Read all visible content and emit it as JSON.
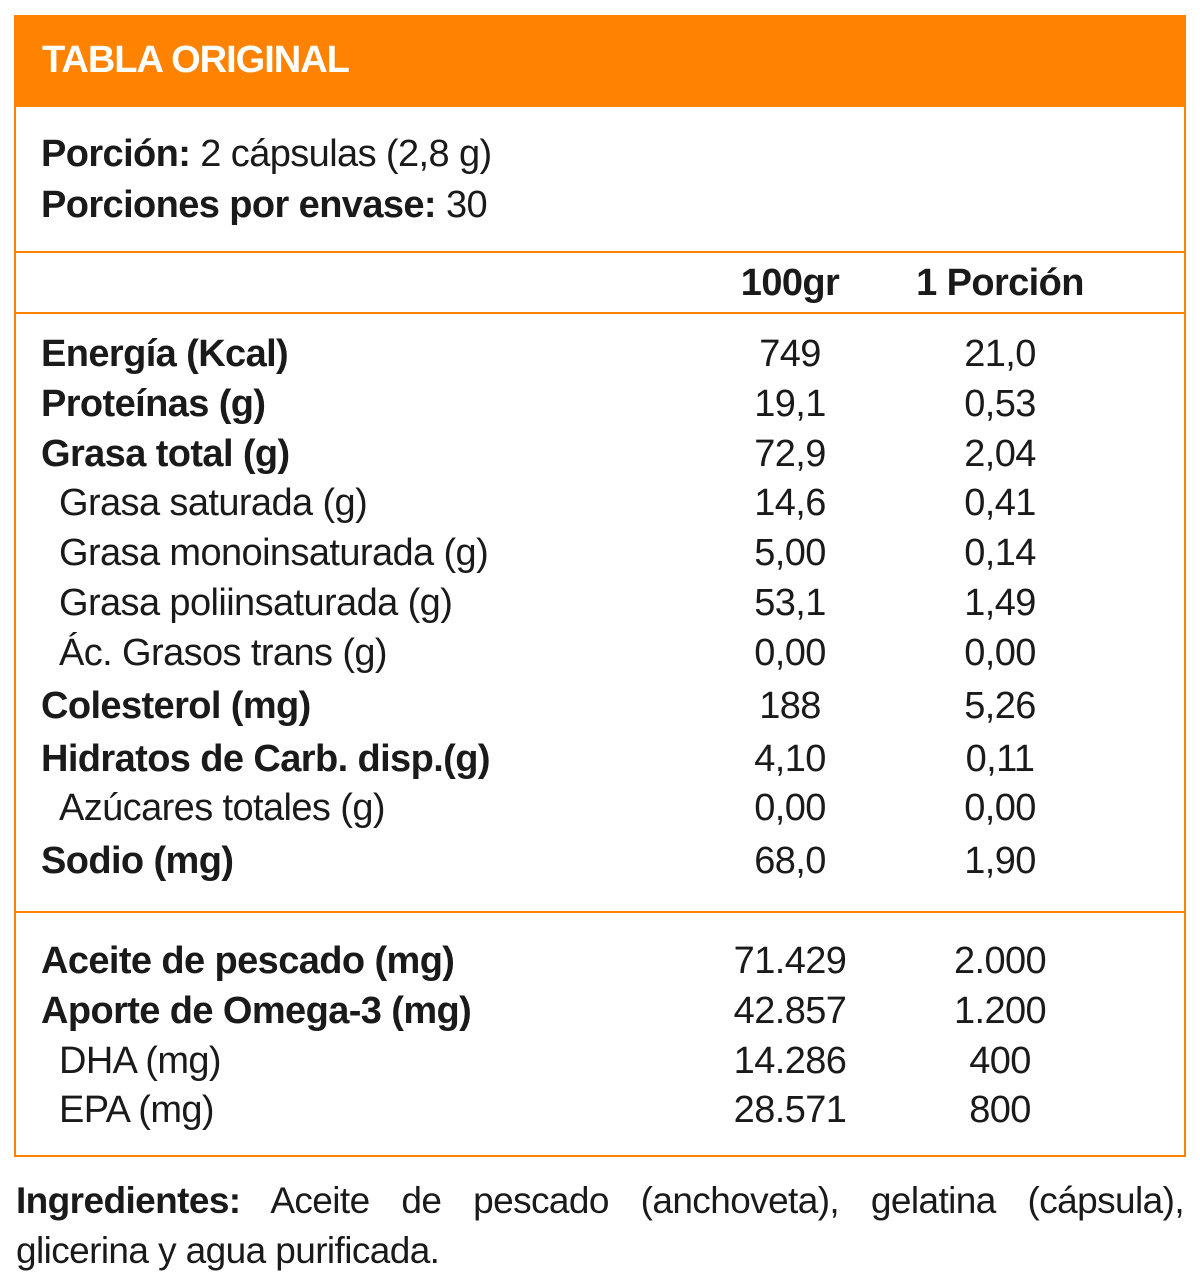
{
  "title": "TABLA ORIGINAL",
  "serving": {
    "label": "Porción:",
    "value": "2 cápsulas (2,8 g)"
  },
  "servings_per_container": {
    "label": "Porciones por envase:",
    "value": "30"
  },
  "columns": [
    "100gr",
    "1 Porción"
  ],
  "nutrients": [
    {
      "name": "Energía (Kcal)",
      "bold": true,
      "v100": "749",
      "vport": "21,0"
    },
    {
      "name": "Proteínas (g)",
      "bold": true,
      "v100": "19,1",
      "vport": "0,53"
    },
    {
      "name": "Grasa total (g)",
      "bold": true,
      "v100": "72,9",
      "vport": "2,04"
    },
    {
      "name": "Grasa saturada (g)",
      "bold": false,
      "v100": "14,6",
      "vport": "0,41"
    },
    {
      "name": "Grasa monoinsaturada (g)",
      "bold": false,
      "v100": "5,00",
      "vport": "0,14"
    },
    {
      "name": "Grasa poliinsaturada (g)",
      "bold": false,
      "v100": "53,1",
      "vport": "1,49"
    },
    {
      "name": "Ác. Grasos trans (g)",
      "bold": false,
      "v100": "0,00",
      "vport": "0,00"
    },
    {
      "name": "Colesterol (mg)",
      "bold": true,
      "v100": "188",
      "vport": "5,26"
    },
    {
      "name": "Hidratos de Carb. disp.(g)",
      "bold": true,
      "v100": "4,10",
      "vport": "0,11"
    },
    {
      "name": "Azúcares totales (g)",
      "bold": false,
      "v100": "0,00",
      "vport": "0,00"
    },
    {
      "name": "Sodio (mg)",
      "bold": true,
      "v100": "68,0",
      "vport": "1,90"
    }
  ],
  "extras": [
    {
      "name": "Aceite de pescado (mg)",
      "bold": true,
      "v100": "71.429",
      "vport": "2.000"
    },
    {
      "name": "Aporte de Omega-3 (mg)",
      "bold": true,
      "v100": "42.857",
      "vport": "1.200"
    },
    {
      "name": "DHA (mg)",
      "bold": false,
      "v100": "14.286",
      "vport": "400"
    },
    {
      "name": "EPA (mg)",
      "bold": false,
      "v100": "28.571",
      "vport": "800"
    }
  ],
  "ingredients": {
    "label": "Ingredientes:",
    "text": "Aceite de pescado (anchoveta), gelatina (cápsula), glicerina y agua purificada."
  },
  "colors": {
    "accent": "#FF8200"
  }
}
